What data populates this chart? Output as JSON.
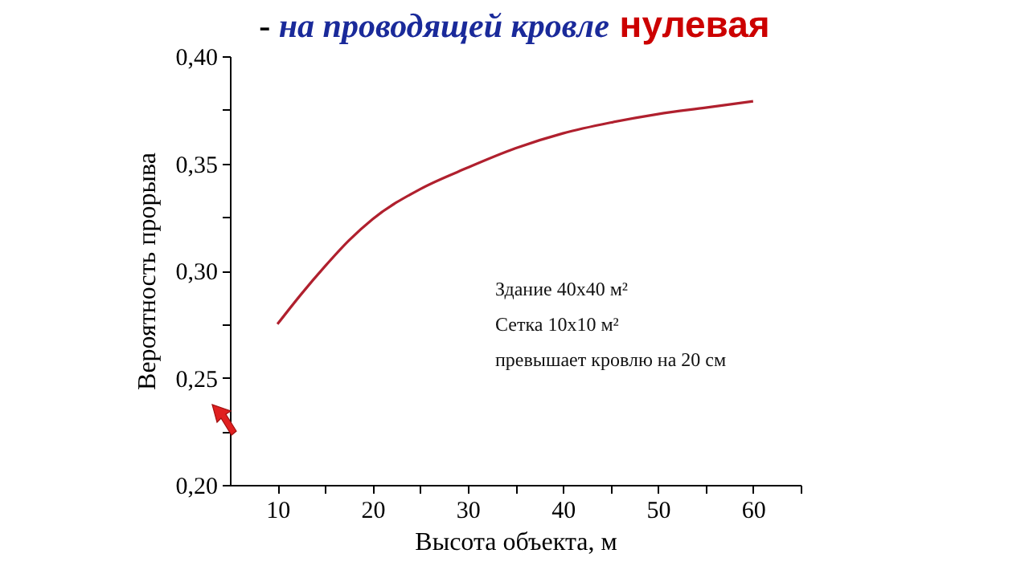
{
  "chart_data": {
    "type": "line",
    "title": "- на проводящей кровле нулевая",
    "xlabel": "Высота объекта,  м",
    "ylabel": "Вероятность прорыва",
    "x": [
      10,
      12.5,
      15,
      17.5,
      20,
      25,
      30,
      35,
      40,
      45,
      50,
      55,
      60
    ],
    "series": [
      {
        "color": "#b0202e",
        "values": [
          0.275,
          0.289,
          0.302,
          0.314,
          0.324,
          0.338,
          0.348,
          0.357,
          0.364,
          0.369,
          0.373,
          0.376,
          0.379
        ]
      }
    ],
    "xlim": [
      5,
      65
    ],
    "xticks": [
      10,
      {
        "value": 15,
        "label": null
      },
      20,
      {
        "value": 25,
        "label": null
      },
      30,
      {
        "value": 35,
        "label": null
      },
      40,
      {
        "value": 45,
        "label": null
      },
      50,
      {
        "value": 55,
        "label": null
      },
      60,
      {
        "value": 65,
        "label": null
      }
    ],
    "ylim": [
      0.2,
      0.4
    ],
    "yticks": [
      {
        "value": 0.2,
        "label": "0,20"
      },
      {
        "value": 0.225,
        "label": null
      },
      {
        "value": 0.25,
        "label": "0,25"
      },
      {
        "value": 0.275,
        "label": null
      },
      {
        "value": 0.3,
        "label": "0,30"
      },
      {
        "value": 0.325,
        "label": null
      },
      {
        "value": 0.35,
        "label": "0,35"
      },
      {
        "value": 0.375,
        "label": null
      },
      {
        "value": 0.4,
        "label": "0,40"
      }
    ],
    "annotations": [
      "Здание 40x40 м²",
      "Сетка 10x10 м²",
      "превышает кровлю на 20 см"
    ],
    "grid": false,
    "marker": "none",
    "line_style": "solid"
  }
}
